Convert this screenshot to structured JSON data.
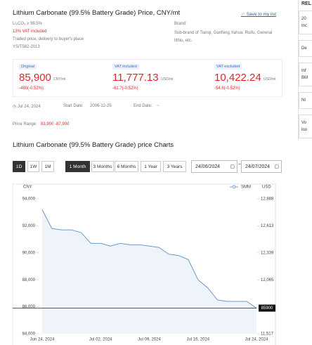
{
  "header": {
    "title": "Lithium Carbonate (99.5% Battery Grade) Price, CNY/mt",
    "save": "Save to my list"
  },
  "specs": [
    "Li₂CO₃ ≥ 99.5%",
    "13% VAT included",
    "Traded price, delivery to buyer's place",
    "YS/T582-2013"
  ],
  "brand": {
    "label": "Brand:",
    "text": "Sub-brand of Tianqi, Ganfeng,Yahua, Ruifu, General lithiu, etc."
  },
  "prices": [
    {
      "label": "Original",
      "value": "85,900",
      "unit": "CNY/mt",
      "change": "-480(-0.52%)"
    },
    {
      "label": "VAT included",
      "value": "11,777.13",
      "unit": "USD/mt",
      "change": "-61.7(-0.52%)"
    },
    {
      "label": "VAT excluded",
      "value": "10,422.24",
      "unit": "USD/mt",
      "change": "-54.6(-0.52%)"
    }
  ],
  "dates": {
    "date": "Jul 24, 2024",
    "start_label": "Start Date:",
    "start": "2006-12-25",
    "end_label": "End Date:",
    "end": "~"
  },
  "range": {
    "label": "Price Range:",
    "value": "83,900 -87,900"
  },
  "section_title": "Lithium Carbonate (99.5% Battery Grade) price Charts",
  "controls": {
    "intervals": [
      "1D",
      "1W",
      "1M"
    ],
    "periods": [
      "1 Month",
      "3 Months",
      "6 Months",
      "1 Year",
      "3 Years"
    ],
    "from": "24/06/2024",
    "separator": "~",
    "to": "24/07/2024"
  },
  "chart_data": {
    "type": "line",
    "y_label": "CNY",
    "y2_label": "USD",
    "categories": [
      "Jun 24, 2024",
      null,
      null,
      null,
      null,
      null,
      "Jul 02, 2024",
      null,
      null,
      null,
      null,
      "Jul 09, 2024",
      null,
      null,
      null,
      null,
      "Jul 16, 2024",
      null,
      null,
      null,
      null,
      null,
      "Jul 24, 2024"
    ],
    "series": [
      {
        "name": "SMM",
        "color": "#5b8fc7",
        "values": [
          93200,
          91800,
          91700,
          91700,
          91500,
          90700,
          90700,
          90500,
          90700,
          90600,
          90600,
          90500,
          90400,
          89900,
          89800,
          89500,
          88000,
          87400,
          86500,
          86400,
          86400,
          86400,
          85900
        ]
      }
    ],
    "area": true,
    "ylim": [
      84000,
      94000
    ],
    "yticks": [
      {
        "value": 84000,
        "label": "84,000"
      },
      {
        "value": 86000,
        "label": "86,000"
      },
      {
        "value": 88000,
        "label": "88,000"
      },
      {
        "value": 90000,
        "label": "90,000"
      },
      {
        "value": 92000,
        "label": "92,000"
      },
      {
        "value": 94000,
        "label": "94,000"
      }
    ],
    "y2lim": [
      11517,
      12888
    ],
    "y2ticks": [
      {
        "value": 11517,
        "label": "11,517"
      },
      {
        "value": 12065,
        "label": "12,065"
      },
      {
        "value": 12339,
        "label": "12,339"
      },
      {
        "value": 12613,
        "label": "12,613"
      },
      {
        "value": 12888,
        "label": "12,888"
      }
    ],
    "last_value": 85900,
    "legend": "top-right"
  },
  "sidebar": {
    "title": "REL",
    "items": [
      [
        "20",
        "Inc"
      ],
      [
        "De"
      ],
      [
        "Inf",
        "BM"
      ],
      [
        "NI"
      ],
      [
        "Vo",
        "loo"
      ]
    ]
  }
}
